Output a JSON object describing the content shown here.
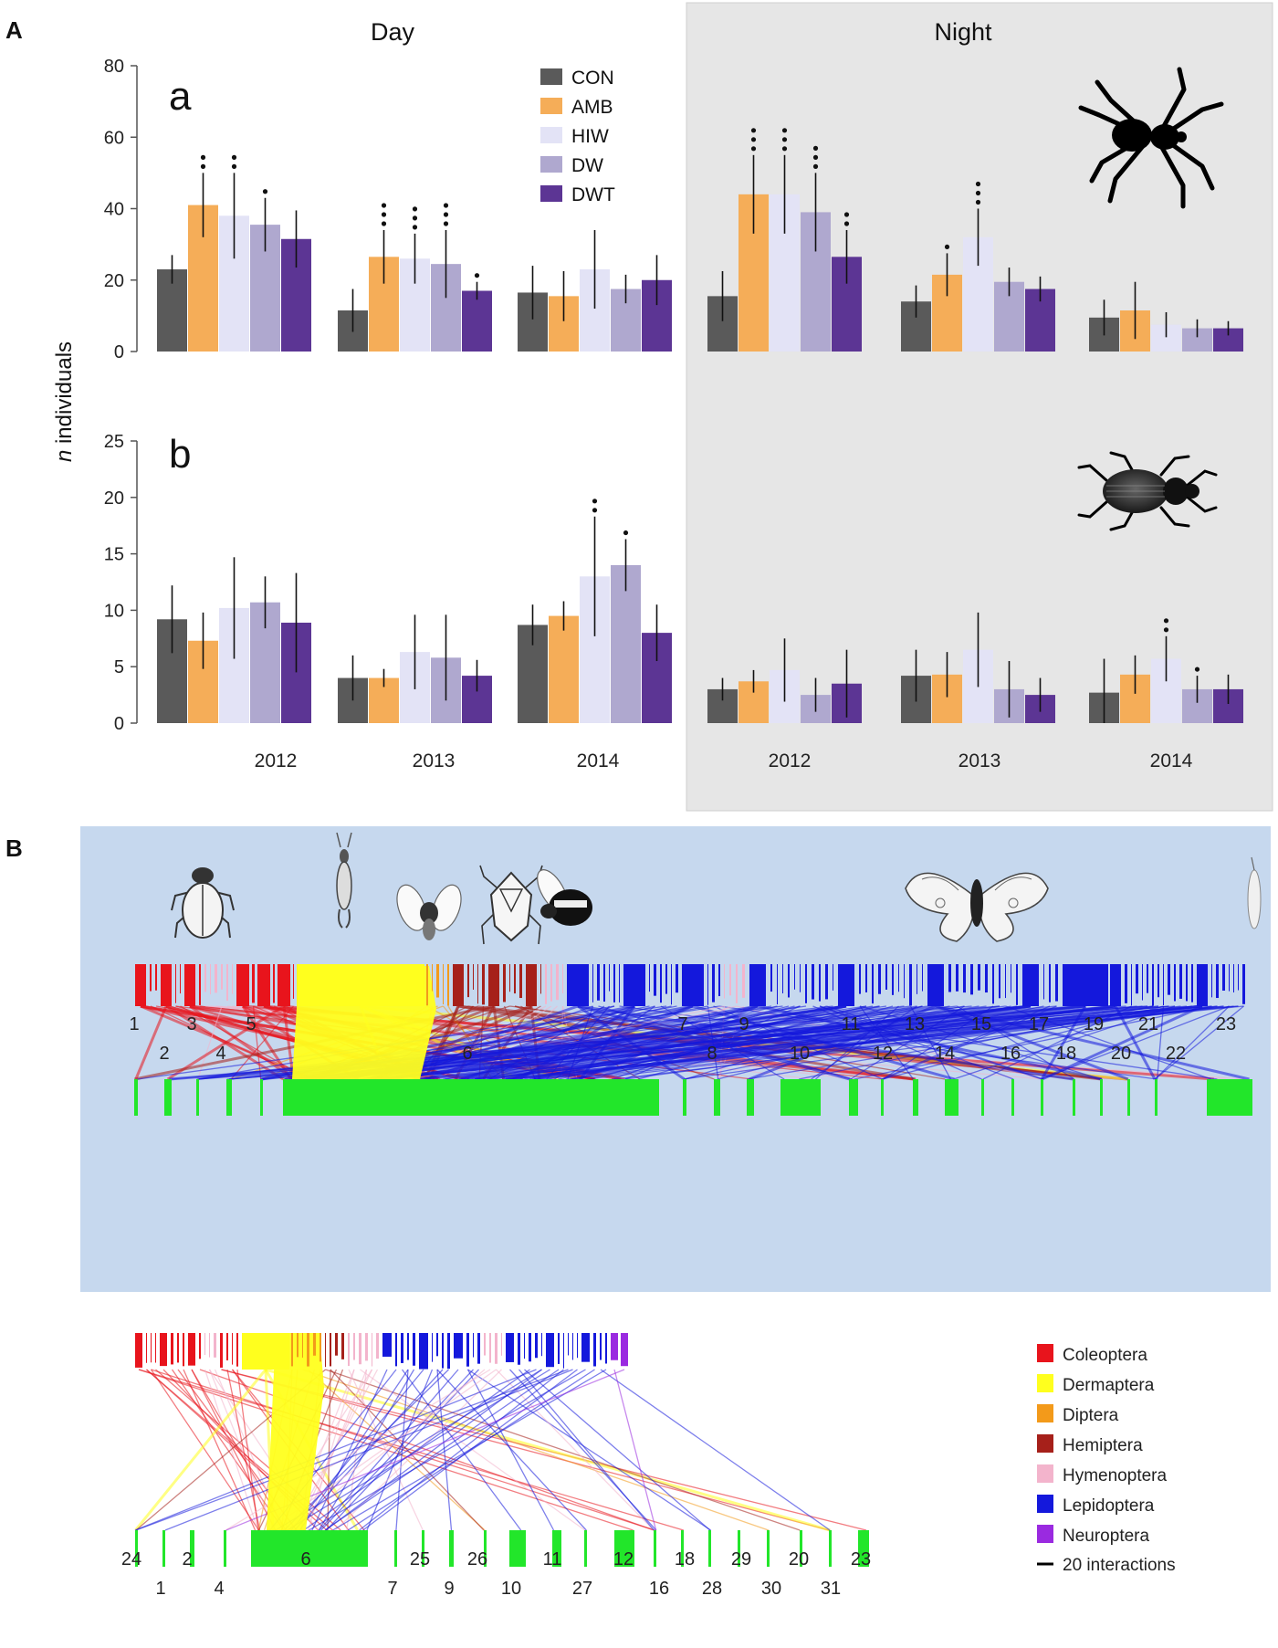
{
  "panel_a": {
    "label": "A",
    "day_title": "Day",
    "night_title": "Night",
    "ylabel_italic": "n",
    "ylabel_rest": " individuals",
    "legend": [
      {
        "label": "CON",
        "color": "#5a5a5a"
      },
      {
        "label": "AMB",
        "color": "#f5ad58"
      },
      {
        "label": "HIW",
        "color": "#e3e3f6"
      },
      {
        "label": "DW",
        "color": "#afa8cf"
      },
      {
        "label": "DWT",
        "color": "#5c3594"
      }
    ]
  },
  "chart_data": [
    {
      "type": "bar",
      "id": "a",
      "label": "a",
      "ylim": [
        0,
        80
      ],
      "yticks": [
        0,
        20,
        40,
        60,
        80
      ],
      "groups": [
        {
          "period": "Day",
          "year": "2012",
          "values": [
            23,
            41,
            38,
            35.5,
            31.5
          ],
          "errors": [
            4,
            9,
            12,
            7.5,
            8
          ],
          "sig": [
            "",
            "**",
            "**",
            "*",
            ""
          ]
        },
        {
          "period": "Day",
          "year": "2013",
          "values": [
            11.5,
            26.5,
            26,
            24.5,
            17
          ],
          "errors": [
            6,
            7.5,
            7,
            9.5,
            2.5
          ],
          "sig": [
            "",
            "***",
            "***",
            "***",
            "*"
          ]
        },
        {
          "period": "Day",
          "year": "2014",
          "values": [
            16.5,
            15.5,
            23,
            17.5,
            20
          ],
          "errors": [
            7.5,
            7,
            11,
            4,
            7
          ],
          "sig": [
            "",
            "",
            "",
            "",
            ""
          ]
        },
        {
          "period": "Night",
          "year": "2012",
          "values": [
            15.5,
            44,
            44,
            39,
            26.5
          ],
          "errors": [
            7,
            11,
            11,
            11,
            7.5
          ],
          "sig": [
            "",
            "***",
            "***",
            "***",
            "**"
          ]
        },
        {
          "period": "Night",
          "year": "2013",
          "values": [
            14,
            21.5,
            32,
            19.5,
            17.5
          ],
          "errors": [
            4.5,
            6,
            8,
            4,
            3.5
          ],
          "sig": [
            "",
            "*",
            "***",
            "",
            ""
          ]
        },
        {
          "period": "Night",
          "year": "2014",
          "values": [
            9.5,
            11.5,
            7.5,
            6.5,
            6.5
          ],
          "errors": [
            5,
            8,
            3.5,
            2.5,
            2
          ],
          "sig": [
            "",
            "",
            "",
            "",
            ""
          ]
        }
      ]
    },
    {
      "type": "bar",
      "id": "b",
      "label": "b",
      "ylim": [
        0,
        25
      ],
      "yticks": [
        0,
        5,
        10,
        15,
        20,
        25
      ],
      "groups": [
        {
          "period": "Day",
          "year": "2012",
          "values": [
            9.2,
            7.3,
            10.2,
            10.7,
            8.9
          ],
          "errors": [
            3,
            2.5,
            4.5,
            2.3,
            4.4
          ],
          "sig": [
            "",
            "",
            "",
            "",
            ""
          ]
        },
        {
          "period": "Day",
          "year": "2013",
          "values": [
            4,
            4,
            6.3,
            5.8,
            4.2
          ],
          "errors": [
            2,
            0.8,
            3.3,
            3.8,
            1.4
          ],
          "sig": [
            "",
            "",
            "",
            "",
            ""
          ]
        },
        {
          "period": "Day",
          "year": "2014",
          "values": [
            8.7,
            9.5,
            13,
            14,
            8
          ],
          "errors": [
            1.8,
            1.3,
            5.3,
            2.3,
            2.5
          ],
          "sig": [
            "",
            "",
            "**",
            "*",
            ""
          ]
        },
        {
          "period": "Night",
          "year": "2012",
          "values": [
            3,
            3.7,
            4.7,
            2.5,
            3.5
          ],
          "errors": [
            1,
            1,
            2.8,
            1.5,
            3
          ],
          "sig": [
            "",
            "",
            "",
            "",
            ""
          ]
        },
        {
          "period": "Night",
          "year": "2013",
          "values": [
            4.2,
            4.3,
            6.5,
            3,
            2.5
          ],
          "errors": [
            2.3,
            2,
            3.3,
            2.5,
            1.5
          ],
          "sig": [
            "",
            "",
            "",
            "",
            ""
          ]
        },
        {
          "period": "Night",
          "year": "2014",
          "values": [
            2.7,
            4.3,
            5.7,
            3,
            3
          ],
          "errors": [
            3,
            1.7,
            2,
            1.2,
            1.3
          ],
          "sig": [
            "",
            "",
            "**",
            "*",
            ""
          ]
        }
      ]
    }
  ],
  "panel_b": {
    "label": "B",
    "top_network": {
      "plant_labels": [
        "1",
        "2",
        "3",
        "4",
        "5",
        "6",
        "7",
        "8",
        "9",
        "10",
        "11",
        "12",
        "13",
        "14",
        "15",
        "16",
        "17",
        "18",
        "19",
        "20",
        "21",
        "22",
        "23"
      ]
    },
    "bottom_network": {
      "plant_labels": [
        "24",
        "1",
        "2",
        "4",
        "6",
        "7",
        "25",
        "9",
        "26",
        "10",
        "11",
        "27",
        "12",
        "16",
        "18",
        "28",
        "29",
        "30",
        "20",
        "31",
        "23"
      ]
    },
    "legend": [
      {
        "label": "Coleoptera",
        "color": "#e8141c"
      },
      {
        "label": "Dermaptera",
        "color": "#ffff1e"
      },
      {
        "label": "Diptera",
        "color": "#f39a1a"
      },
      {
        "label": "Hemiptera",
        "color": "#a6201a"
      },
      {
        "label": "Hymenoptera",
        "color": "#f3b4cc"
      },
      {
        "label": "Lepidoptera",
        "color": "#1418dc"
      },
      {
        "label": "Neuroptera",
        "color": "#9a2ae0"
      }
    ],
    "scale_label": "20 interactions",
    "plant_color": "#22e62a",
    "background": "#c6d8ee"
  }
}
